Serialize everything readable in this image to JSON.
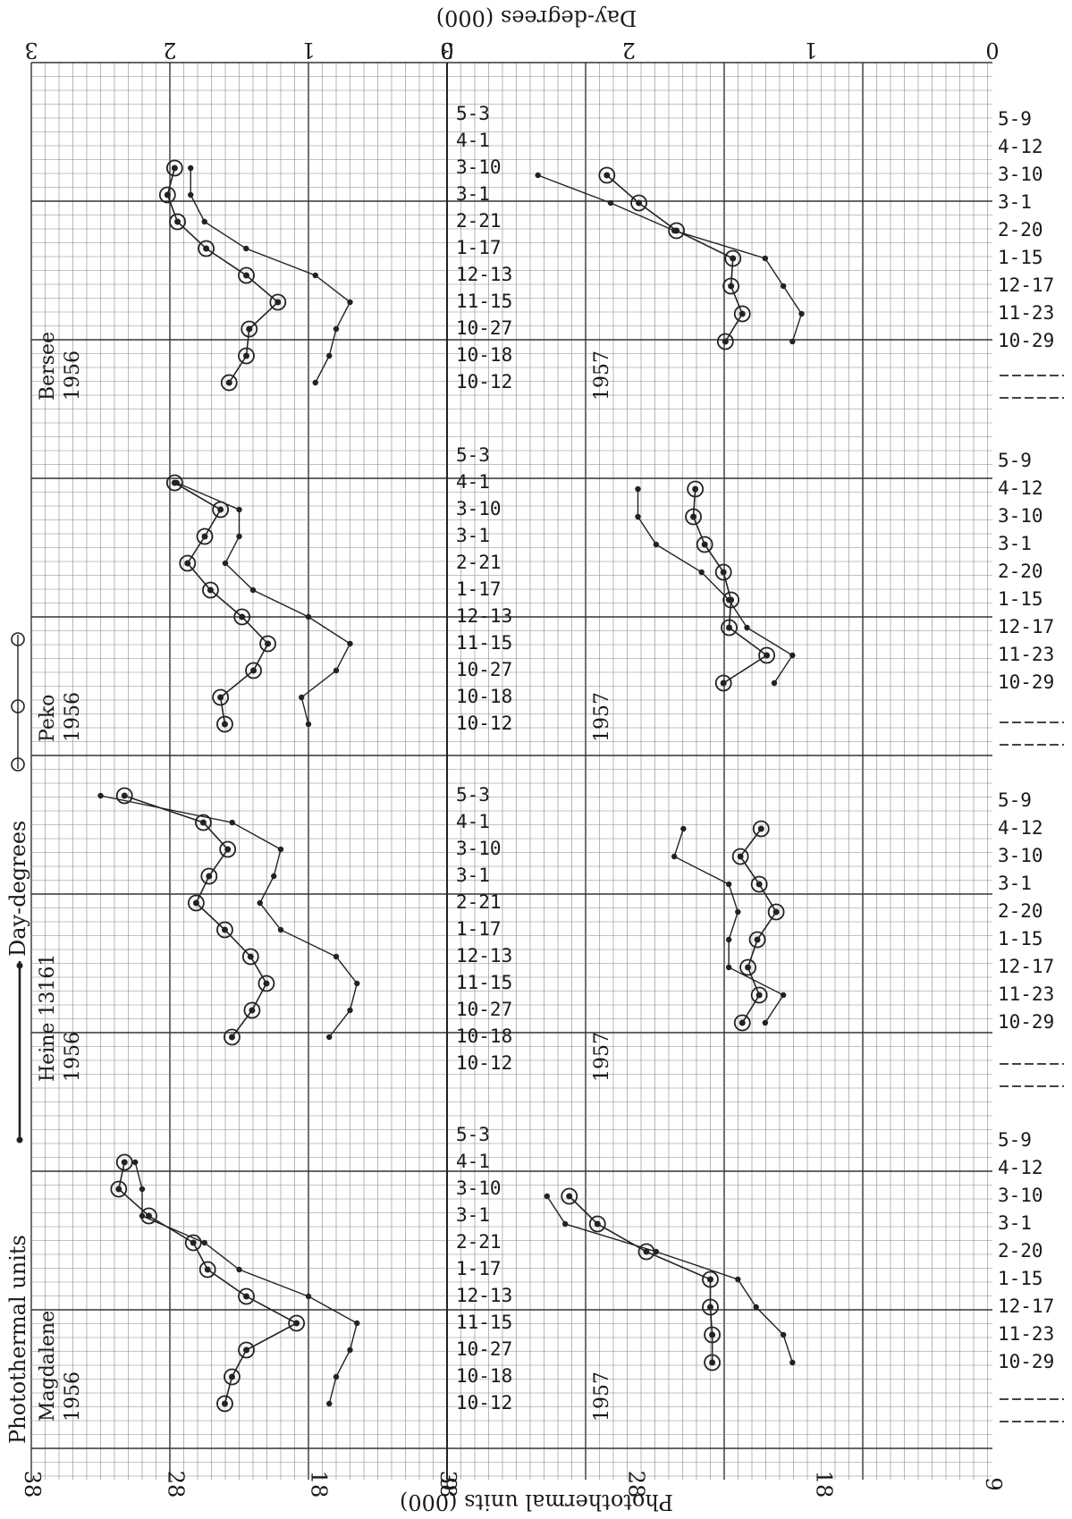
{
  "chart_data": {
    "type": "line",
    "top_axis_title": "Day-degrees (000)",
    "bottom_axis_title": "Photothermal units (000)",
    "y_axis_title": "Photothermal units",
    "y_axis_title_extra": "Day-degrees",
    "top_ticks_1956": [
      "3",
      "2",
      "1",
      "0"
    ],
    "top_ticks_1957": [
      "3",
      "2",
      "1",
      "0"
    ],
    "bottom_ticks_1956": [
      "38",
      "28",
      "18",
      "9"
    ],
    "bottom_ticks_1957": [
      "38",
      "28",
      "18",
      "9"
    ],
    "dates_1956": [
      "5-3",
      "4-1",
      "3-10",
      "3-1",
      "2-21",
      "1-17",
      "12-13",
      "11-15",
      "10-27",
      "10-18",
      "10-12"
    ],
    "dates_1957": [
      "5-9",
      "4-12",
      "3-10",
      "3-1",
      "2-20",
      "1-15",
      "12-17",
      "11-23",
      "10-29"
    ],
    "panels": [
      {
        "variety": "Bersee",
        "year_1956": "1956",
        "year_1957": "1957",
        "series_1956": {
          "day_degrees": [
            null,
            null,
            1.85,
            1.85,
            1.75,
            1.45,
            0.95,
            0.7,
            0.8,
            0.85,
            0.95
          ],
          "photothermal_units": [
            null,
            null,
            28.0,
            28.5,
            27.8,
            25.8,
            23.0,
            20.8,
            22.8,
            23.0,
            24.2
          ]
        },
        "series_1957": {
          "day_degrees": [
            null,
            null,
            2.5,
            2.1,
            1.75,
            1.25,
            1.15,
            1.05,
            1.1
          ],
          "photothermal_units": [
            null,
            null,
            29.5,
            27.8,
            25.8,
            22.8,
            22.9,
            22.3,
            23.2
          ]
        }
      },
      {
        "variety": "Peko",
        "year_1956": "1956",
        "year_1957": "1957",
        "series_1956": {
          "day_degrees": [
            null,
            1.95,
            1.5,
            1.5,
            1.6,
            1.4,
            1.0,
            0.7,
            0.8,
            1.05,
            1.0
          ],
          "photothermal_units": [
            null,
            28.0,
            24.8,
            25.9,
            27.1,
            25.5,
            23.3,
            21.5,
            22.5,
            24.8,
            24.5
          ]
        },
        "series_1957": {
          "day_degrees": [
            null,
            1.95,
            1.95,
            1.85,
            1.6,
            1.45,
            1.35,
            1.1,
            1.2
          ],
          "photothermal_units": [
            null,
            24.8,
            24.9,
            24.3,
            23.3,
            22.9,
            23.0,
            21.0,
            23.3
          ]
        }
      },
      {
        "variety": "Heine 13161",
        "year_1956": "1956",
        "year_1957": "1957",
        "series_1956": {
          "day_degrees": [
            2.5,
            1.55,
            1.2,
            1.25,
            1.35,
            1.2,
            0.8,
            0.65,
            0.7,
            0.85,
            null
          ],
          "photothermal_units": [
            31.5,
            26.0,
            24.3,
            25.6,
            26.5,
            24.5,
            22.7,
            21.6,
            22.6,
            24.0,
            null
          ],
          "extra_point": null
        },
        "series_1957": {
          "day_degrees": [
            null,
            1.7,
            1.75,
            1.45,
            1.4,
            1.45,
            1.45,
            1.15,
            1.25
          ],
          "photothermal_units": [
            null,
            21.3,
            22.4,
            21.4,
            20.5,
            21.5,
            22.0,
            21.4,
            22.3
          ]
        }
      },
      {
        "variety": "Magdalene",
        "year_1956": "1956",
        "year_1957": "1957",
        "series_1956": {
          "day_degrees": [
            null,
            2.25,
            2.2,
            2.2,
            1.75,
            1.5,
            1.0,
            0.65,
            0.7,
            0.8,
            0.85
          ],
          "photothermal_units": [
            null,
            31.5,
            31.9,
            29.8,
            26.7,
            25.7,
            23.0,
            19.5,
            23.0,
            24.0,
            24.5
          ]
        },
        "series_1957": {
          "day_degrees": [
            null,
            null,
            2.45,
            2.35,
            1.85,
            1.4,
            1.3,
            1.15,
            1.1
          ],
          "photothermal_units": [
            null,
            null,
            31.5,
            30.0,
            27.4,
            24.0,
            24.0,
            23.9,
            23.9
          ]
        }
      }
    ]
  }
}
